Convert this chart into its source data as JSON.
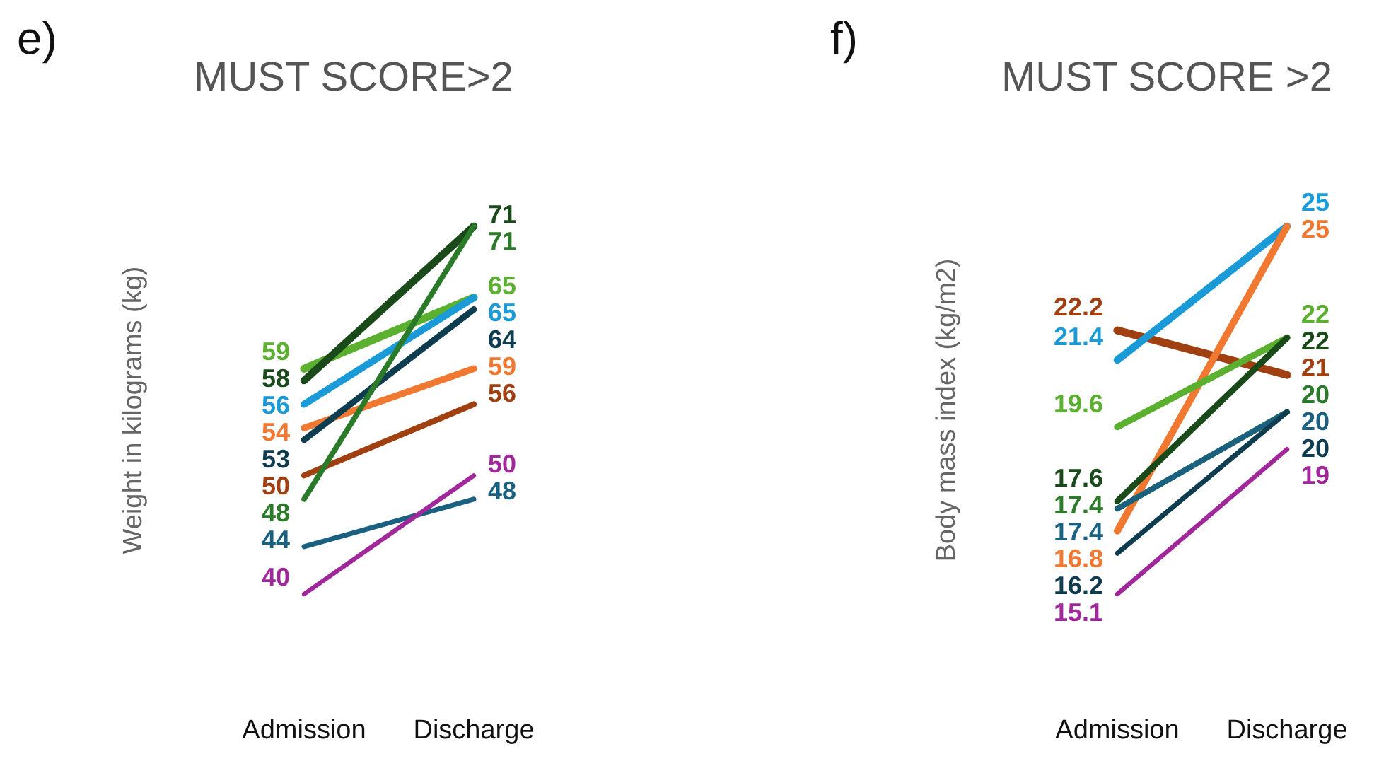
{
  "chart_data": [
    {
      "type": "line",
      "title": "MUST SCORE>2",
      "ylabel": "Weight in kilograms (kg)",
      "annotations": [
        "e)"
      ],
      "categories": [
        "Admission",
        "Discharge"
      ],
      "data_labels": true,
      "series": [
        {
          "color": "#5bb030",
          "values": [
            59,
            65
          ]
        },
        {
          "color": "#1a4a1a",
          "values": [
            58,
            71
          ]
        },
        {
          "color": "#1a9ad6",
          "values": [
            56,
            65
          ]
        },
        {
          "color": "#f07830",
          "values": [
            54,
            59
          ]
        },
        {
          "color": "#0f3d50",
          "values": [
            53,
            64
          ]
        },
        {
          "color": "#a04010",
          "values": [
            50,
            56
          ]
        },
        {
          "color": "#2a7a2a",
          "values": [
            48,
            71
          ]
        },
        {
          "color": "#1a6080",
          "values": [
            44,
            48
          ]
        },
        {
          "color": "#a0289a",
          "values": [
            40,
            50
          ]
        }
      ]
    },
    {
      "type": "line",
      "title": "MUST SCORE >2",
      "ylabel": "Body mass index (kg/m2)",
      "annotations": [
        "f)"
      ],
      "categories": [
        "Admission",
        "Discharge"
      ],
      "data_labels": true,
      "series": [
        {
          "color": "#a04010",
          "values": [
            22.2,
            21
          ]
        },
        {
          "color": "#1a9ad6",
          "values": [
            21.4,
            25
          ]
        },
        {
          "color": "#f07830",
          "values": [
            16.8,
            25
          ]
        },
        {
          "color": "#5bb030",
          "values": [
            19.6,
            22
          ]
        },
        {
          "color": "#1a4a1a",
          "values": [
            17.6,
            22
          ]
        },
        {
          "color": "#2a7a2a",
          "values": [
            17.4,
            20
          ]
        },
        {
          "color": "#1a6080",
          "values": [
            17.4,
            20
          ]
        },
        {
          "color": "#0f3d50",
          "values": [
            16.2,
            20
          ]
        },
        {
          "color": "#a0289a",
          "values": [
            15.1,
            19
          ]
        }
      ]
    }
  ]
}
